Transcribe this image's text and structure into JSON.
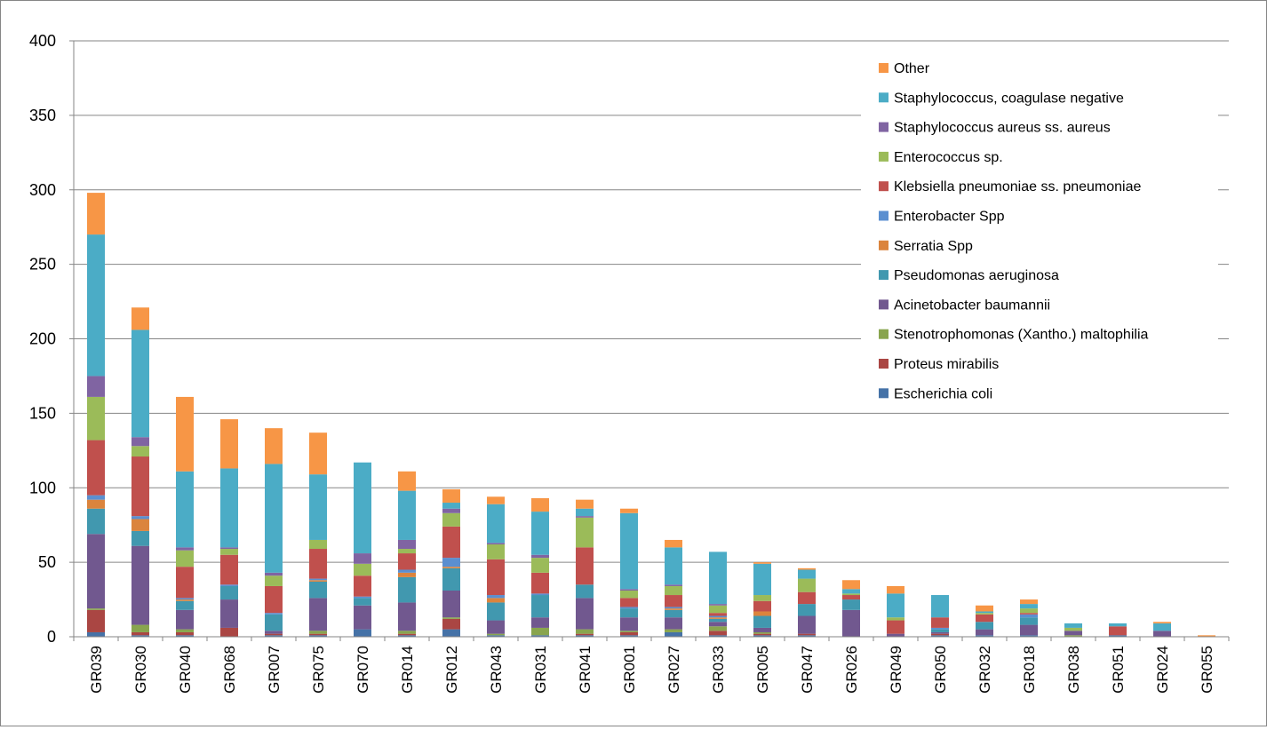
{
  "chart_data": {
    "type": "bar",
    "stacked": true,
    "title": "",
    "xlabel": "",
    "ylabel": "",
    "ylim": [
      0,
      400
    ],
    "yticks": [
      0,
      50,
      100,
      150,
      200,
      250,
      300,
      350,
      400
    ],
    "grid": "horizontal",
    "legend_position": "top-right",
    "categories": [
      "GR039",
      "GR030",
      "GR040",
      "GR068",
      "GR007",
      "GR075",
      "GR070",
      "GR014",
      "GR012",
      "GR043",
      "GR031",
      "GR041",
      "GR001",
      "GR027",
      "GR033",
      "GR005",
      "GR047",
      "GR026",
      "GR049",
      "GR050",
      "GR032",
      "GR018",
      "GR038",
      "GR051",
      "GR024",
      "GR055"
    ],
    "series": [
      {
        "name": "Escherichia coli",
        "color": "#4572A7",
        "values": [
          3,
          1,
          1,
          0,
          1,
          1,
          5,
          1,
          5,
          1,
          1,
          1,
          1,
          3,
          1,
          1,
          1,
          0,
          0,
          1,
          1,
          1,
          0,
          1,
          0,
          0
        ]
      },
      {
        "name": "Proteus mirabilis",
        "color": "#AA4643",
        "values": [
          15,
          2,
          2,
          6,
          1,
          1,
          0,
          1,
          7,
          0,
          0,
          1,
          2,
          0,
          3,
          1,
          1,
          0,
          0,
          1,
          0,
          0,
          0,
          0,
          0,
          0
        ]
      },
      {
        "name": "Stenotrophomonas (Xantho.) maltophilia",
        "color": "#89A54E",
        "values": [
          1,
          5,
          2,
          0,
          0,
          2,
          0,
          2,
          1,
          1,
          5,
          3,
          1,
          2,
          3,
          1,
          0,
          0,
          0,
          0,
          0,
          0,
          1,
          0,
          0,
          0
        ]
      },
      {
        "name": "Acinetobacter baumannii",
        "color": "#71588F",
        "values": [
          50,
          53,
          13,
          19,
          2,
          22,
          16,
          19,
          18,
          9,
          7,
          21,
          9,
          8,
          3,
          3,
          12,
          18,
          2,
          1,
          4,
          7,
          3,
          0,
          4,
          0
        ]
      },
      {
        "name": "Pseudomonas aeruginosa",
        "color": "#4198AF",
        "values": [
          17,
          10,
          6,
          9,
          11,
          11,
          5,
          17,
          15,
          12,
          15,
          9,
          6,
          5,
          2,
          8,
          8,
          7,
          0,
          2,
          5,
          5,
          0,
          0,
          0,
          0
        ]
      },
      {
        "name": "Serratia Spp",
        "color": "#DB843D",
        "values": [
          6,
          8,
          1,
          0,
          0,
          1,
          0,
          3,
          1,
          3,
          0,
          0,
          0,
          1,
          1,
          3,
          0,
          0,
          0,
          0,
          0,
          0,
          0,
          0,
          0,
          0
        ]
      },
      {
        "name": "Enterobacter Spp",
        "color": "#5B8FD0",
        "values": [
          3,
          2,
          1,
          1,
          1,
          1,
          1,
          2,
          6,
          2,
          1,
          0,
          1,
          1,
          1,
          0,
          0,
          0,
          0,
          1,
          0,
          2,
          0,
          0,
          0,
          0
        ]
      },
      {
        "name": "Klebsiella pneumoniae ss. pneumoniae",
        "color": "#C0504D",
        "values": [
          37,
          40,
          21,
          20,
          18,
          20,
          14,
          11,
          21,
          24,
          14,
          25,
          6,
          8,
          2,
          7,
          8,
          3,
          9,
          7,
          5,
          1,
          0,
          6,
          0,
          0
        ]
      },
      {
        "name": "Enterococcus sp.",
        "color": "#9BBB59",
        "values": [
          29,
          7,
          11,
          4,
          7,
          6,
          8,
          3,
          9,
          10,
          10,
          20,
          5,
          6,
          5,
          4,
          9,
          1,
          2,
          0,
          1,
          3,
          2,
          0,
          0,
          0
        ]
      },
      {
        "name": "Staphylococcus aureus ss. aureus",
        "color": "#8064A2",
        "values": [
          14,
          6,
          2,
          1,
          2,
          0,
          7,
          6,
          3,
          1,
          2,
          1,
          1,
          1,
          1,
          0,
          0,
          0,
          0,
          0,
          0,
          0,
          0,
          0,
          0,
          0
        ]
      },
      {
        "name": "Staphylococcus, coagulase negative",
        "color": "#4BACC6",
        "values": [
          95,
          72,
          51,
          53,
          73,
          44,
          61,
          33,
          4,
          26,
          29,
          5,
          51,
          25,
          35,
          21,
          6,
          3,
          16,
          15,
          1,
          3,
          3,
          2,
          5,
          0
        ]
      },
      {
        "name": "Other",
        "color": "#F79646",
        "values": [
          28,
          15,
          50,
          33,
          24,
          28,
          0,
          13,
          9,
          5,
          9,
          6,
          3,
          5,
          0,
          1,
          1,
          6,
          5,
          0,
          4,
          3,
          0,
          0,
          1,
          1
        ]
      }
    ]
  }
}
